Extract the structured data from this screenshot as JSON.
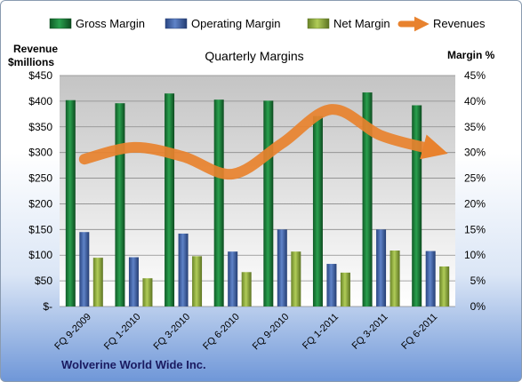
{
  "chart_data": {
    "type": "bar",
    "title": "Quarterly Margins",
    "footer": "Wolverine World Wide Inc.",
    "left_axis_title": [
      "Revenue",
      "$millions"
    ],
    "right_axis_title": "Margin %",
    "categories": [
      "FQ 9-2009",
      "FQ 1-2010",
      "FQ 3-2010",
      "FQ 6-2010",
      "FQ 9-2010",
      "FQ 1-2011",
      "FQ 3-2011",
      "FQ 6-2011"
    ],
    "left_ticks": [
      "$-",
      "$50",
      "$100",
      "$150",
      "$200",
      "$250",
      "$300",
      "$350",
      "$400",
      "$450"
    ],
    "right_ticks": [
      "0%",
      "5%",
      "10%",
      "15%",
      "20%",
      "25%",
      "30%",
      "35%",
      "40%",
      "45%"
    ],
    "left_ylim": [
      0,
      450
    ],
    "right_ylim": [
      0,
      45
    ],
    "legend_position": "top",
    "series": [
      {
        "name": "Gross Margin",
        "type": "bar",
        "axis": "right",
        "color": "#1e7a3c",
        "values": [
          40.2,
          39.6,
          41.5,
          40.3,
          40.1,
          37.1,
          41.7,
          39.2
        ]
      },
      {
        "name": "Operating Margin",
        "type": "bar",
        "axis": "right",
        "color": "#3f63a8",
        "values": [
          14.5,
          9.6,
          14.2,
          10.7,
          15.0,
          8.3,
          15.0,
          10.8
        ]
      },
      {
        "name": "Net Margin",
        "type": "bar",
        "axis": "right",
        "color": "#8caa3a",
        "values": [
          9.5,
          5.5,
          9.8,
          6.7,
          10.7,
          6.6,
          10.9,
          7.8
        ]
      },
      {
        "name": "Revenues",
        "type": "line",
        "axis": "left",
        "color": "#e8822e",
        "values": [
          287,
          310,
          292,
          258,
          318,
          384,
          333,
          307
        ]
      }
    ]
  }
}
